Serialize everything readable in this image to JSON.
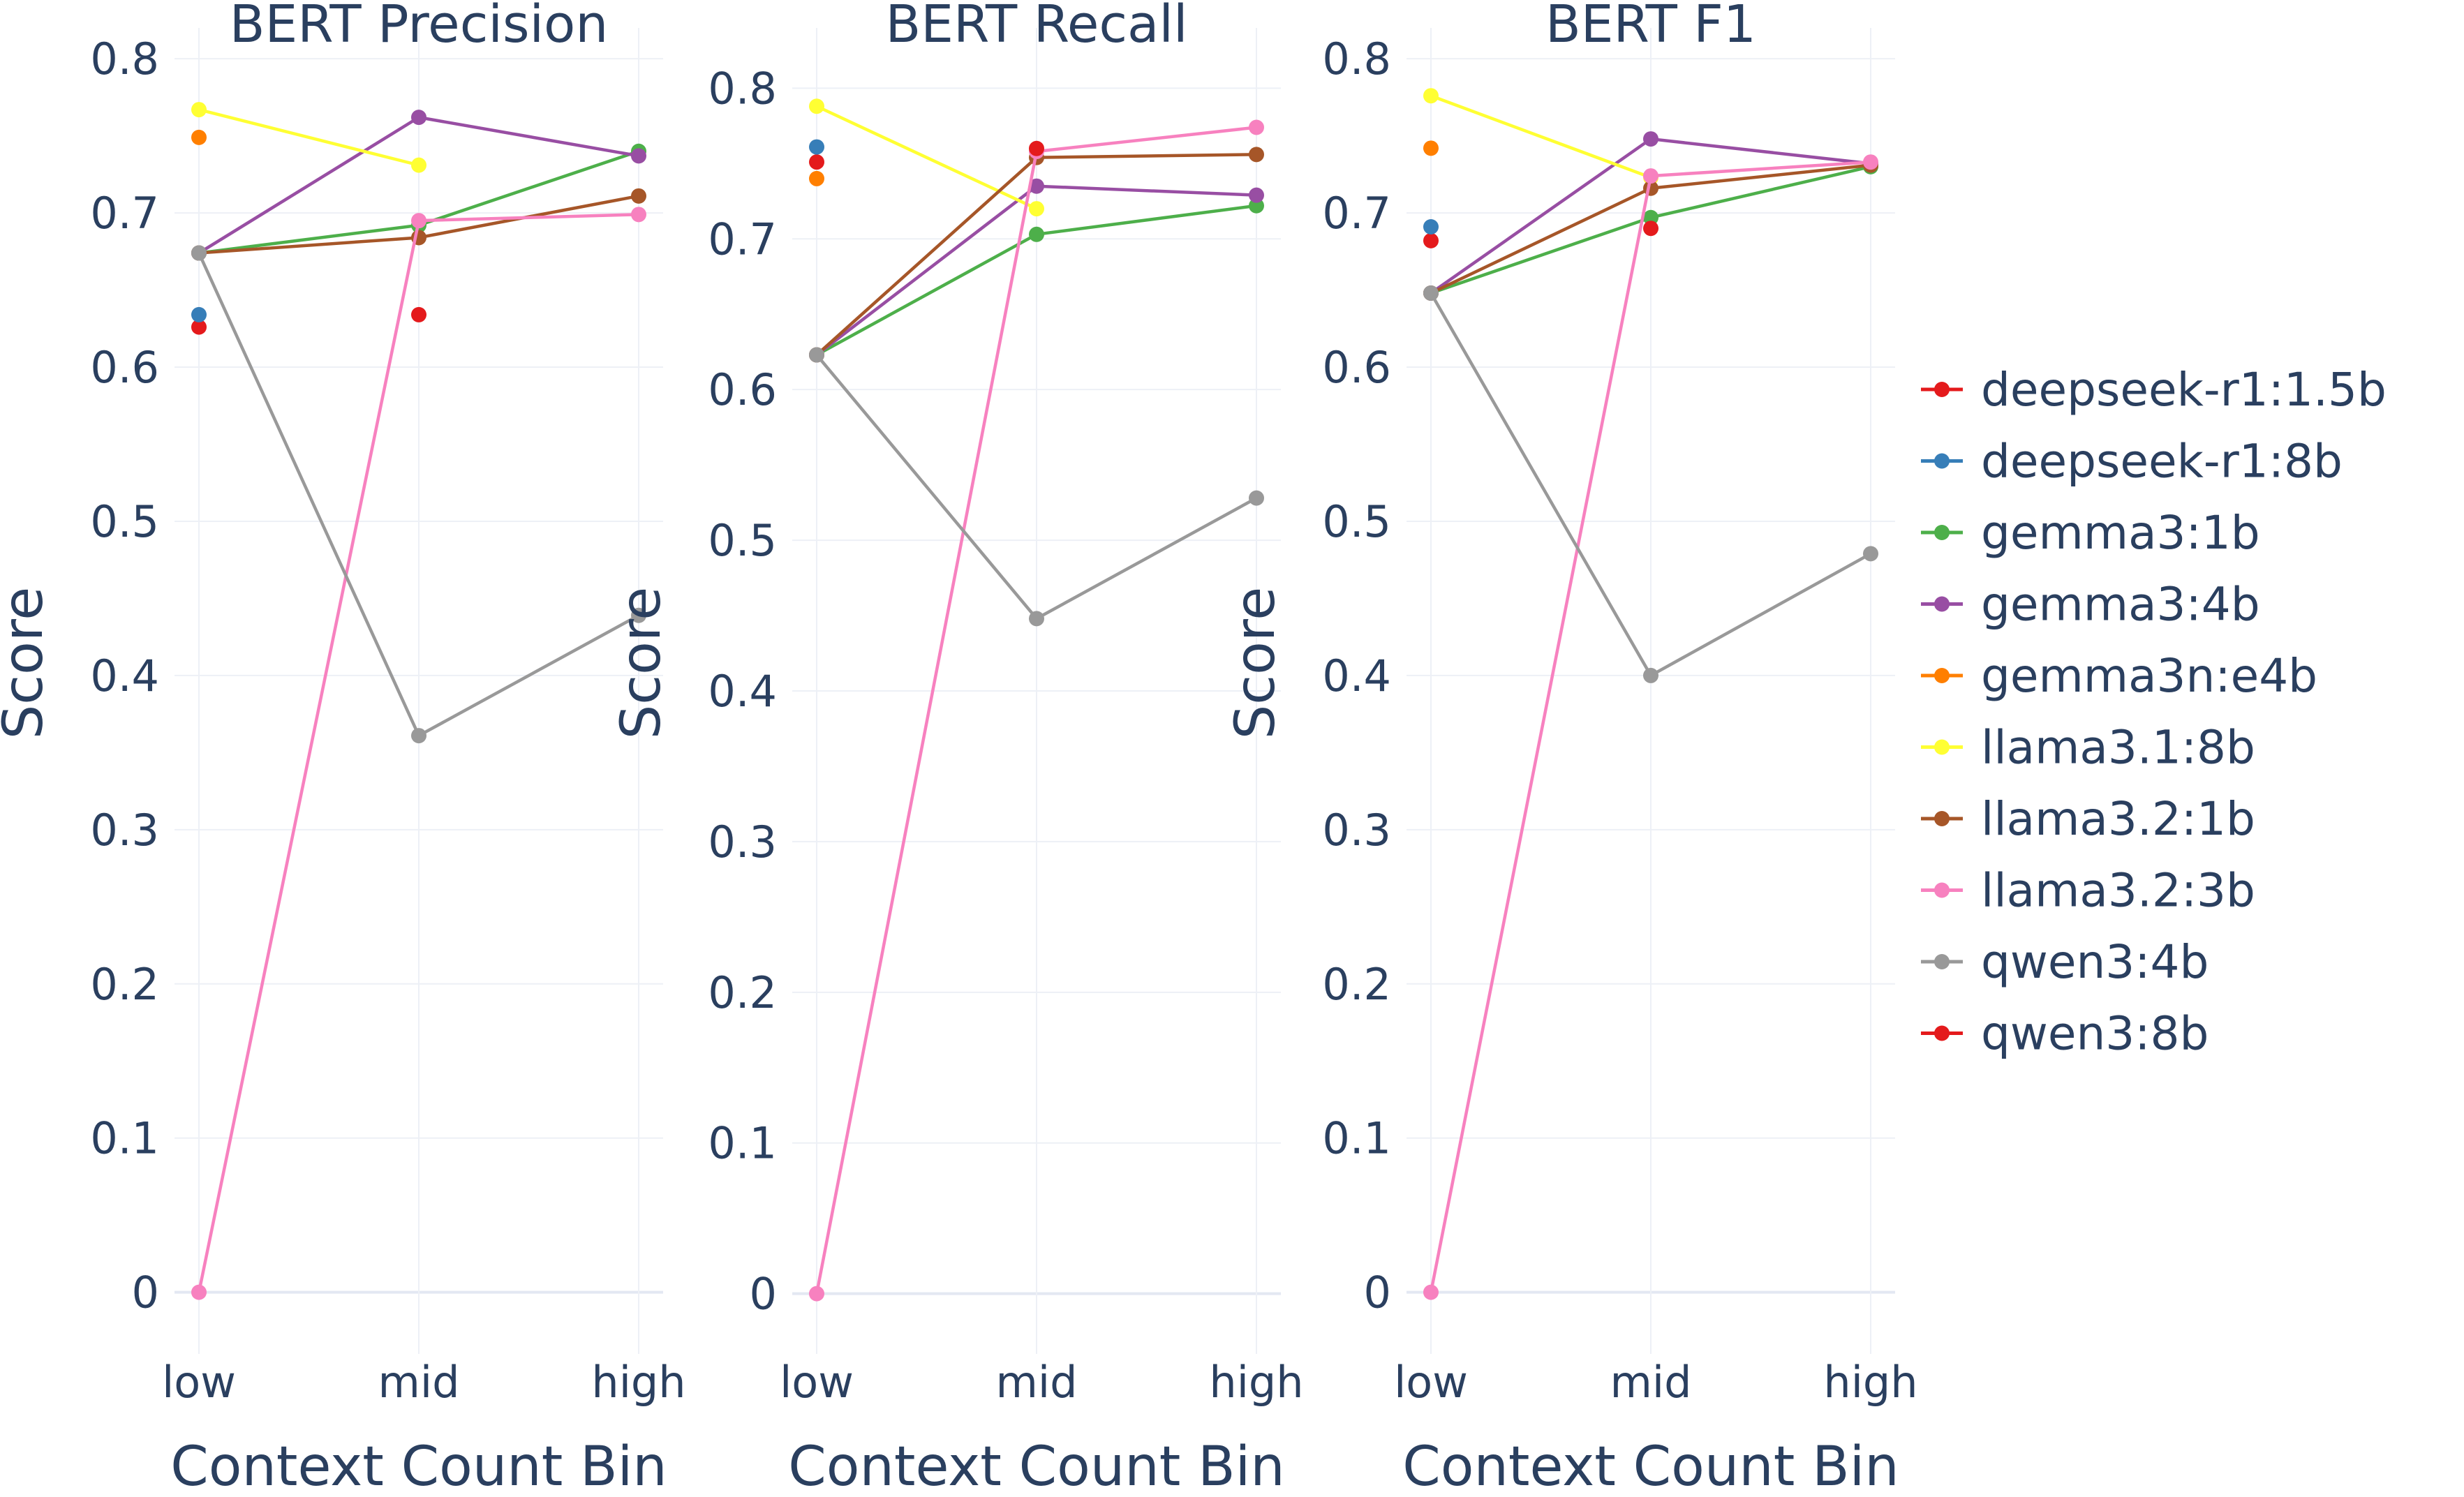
{
  "chart_data": {
    "type": "line",
    "categories": [
      "low",
      "mid",
      "high"
    ],
    "xlabel": "Context Count Bin",
    "ylabel": "Score",
    "legend_position": "right",
    "colors": {
      "deepseek-r1:1.5b": "#e41a1c",
      "deepseek-r1:8b": "#377eb8",
      "gemma3:1b": "#4daf4a",
      "gemma3:4b": "#984ea3",
      "gemma3n:e4b": "#ff7f00",
      "llama3.1:8b": "#ffff33",
      "llama3.2:1b": "#a65628",
      "llama3.2:3b": "#f781bf",
      "qwen3:4b": "#999999",
      "qwen3:8b": "#e41a1c"
    },
    "legend": [
      "deepseek-r1:1.5b",
      "deepseek-r1:8b",
      "gemma3:1b",
      "gemma3:4b",
      "gemma3n:e4b",
      "llama3.1:8b",
      "llama3.2:1b",
      "llama3.2:3b",
      "qwen3:4b",
      "qwen3:8b"
    ],
    "panels": [
      {
        "title": "BERT Precision",
        "ylim": [
          -0.04,
          0.82
        ],
        "yticks": [
          0,
          0.1,
          0.2,
          0.3,
          0.4,
          0.5,
          0.6,
          0.7,
          0.8
        ],
        "yticklabels": [
          "0",
          "0.1",
          "0.2",
          "0.3",
          "0.4",
          "0.5",
          "0.6",
          "0.7",
          "0.8"
        ],
        "series": [
          {
            "name": "deepseek-r1:1.5b",
            "values": [
              0.626,
              null,
              null
            ]
          },
          {
            "name": "deepseek-r1:8b",
            "values": [
              0.634,
              null,
              null
            ]
          },
          {
            "name": "gemma3:1b",
            "values": [
              0.674,
              0.692,
              0.74
            ]
          },
          {
            "name": "gemma3:4b",
            "values": [
              0.674,
              0.762,
              0.737
            ]
          },
          {
            "name": "gemma3n:e4b",
            "values": [
              0.749,
              null,
              null
            ]
          },
          {
            "name": "llama3.1:8b",
            "values": [
              0.767,
              0.731,
              null
            ]
          },
          {
            "name": "llama3.2:1b",
            "values": [
              0.674,
              0.684,
              0.711
            ]
          },
          {
            "name": "llama3.2:3b",
            "values": [
              0.0,
              0.695,
              0.699
            ]
          },
          {
            "name": "qwen3:4b",
            "values": [
              0.674,
              0.361,
              0.439
            ]
          },
          {
            "name": "qwen3:8b",
            "values": [
              null,
              0.634,
              null
            ]
          }
        ]
      },
      {
        "title": "BERT Recall",
        "ylim": [
          -0.04,
          0.84
        ],
        "yticks": [
          0,
          0.1,
          0.2,
          0.3,
          0.4,
          0.5,
          0.6,
          0.7,
          0.8
        ],
        "yticklabels": [
          "0",
          "0.1",
          "0.2",
          "0.3",
          "0.4",
          "0.5",
          "0.6",
          "0.7",
          "0.8"
        ],
        "series": [
          {
            "name": "deepseek-r1:1.5b",
            "values": [
              0.751,
              null,
              null
            ]
          },
          {
            "name": "deepseek-r1:8b",
            "values": [
              0.761,
              null,
              null
            ]
          },
          {
            "name": "gemma3:1b",
            "values": [
              0.623,
              0.703,
              0.722
            ]
          },
          {
            "name": "gemma3:4b",
            "values": [
              0.623,
              0.735,
              0.729
            ]
          },
          {
            "name": "gemma3n:e4b",
            "values": [
              0.74,
              null,
              null
            ]
          },
          {
            "name": "llama3.1:8b",
            "values": [
              0.788,
              0.72,
              null
            ]
          },
          {
            "name": "llama3.2:1b",
            "values": [
              0.623,
              0.754,
              0.756
            ]
          },
          {
            "name": "llama3.2:3b",
            "values": [
              0.0,
              0.758,
              0.774
            ]
          },
          {
            "name": "qwen3:4b",
            "values": [
              0.623,
              0.448,
              0.528
            ]
          },
          {
            "name": "qwen3:8b",
            "values": [
              null,
              0.76,
              null
            ]
          }
        ]
      },
      {
        "title": "BERT F1",
        "ylim": [
          -0.04,
          0.82
        ],
        "yticks": [
          0,
          0.1,
          0.2,
          0.3,
          0.4,
          0.5,
          0.6,
          0.7,
          0.8
        ],
        "yticklabels": [
          "0",
          "0.1",
          "0.2",
          "0.3",
          "0.4",
          "0.5",
          "0.6",
          "0.7",
          "0.8"
        ],
        "series": [
          {
            "name": "deepseek-r1:1.5b",
            "values": [
              0.682,
              null,
              null
            ]
          },
          {
            "name": "deepseek-r1:8b",
            "values": [
              0.691,
              null,
              null
            ]
          },
          {
            "name": "gemma3:1b",
            "values": [
              0.648,
              0.697,
              0.73
            ]
          },
          {
            "name": "gemma3:4b",
            "values": [
              0.648,
              0.748,
              0.732
            ]
          },
          {
            "name": "gemma3n:e4b",
            "values": [
              0.742,
              null,
              null
            ]
          },
          {
            "name": "llama3.1:8b",
            "values": [
              0.776,
              0.723,
              null
            ]
          },
          {
            "name": "llama3.2:1b",
            "values": [
              0.648,
              0.716,
              0.731
            ]
          },
          {
            "name": "llama3.2:3b",
            "values": [
              0.0,
              0.724,
              0.733
            ]
          },
          {
            "name": "qwen3:4b",
            "values": [
              0.648,
              0.4,
              0.479
            ]
          },
          {
            "name": "qwen3:8b",
            "values": [
              null,
              0.69,
              null
            ]
          }
        ]
      }
    ]
  }
}
